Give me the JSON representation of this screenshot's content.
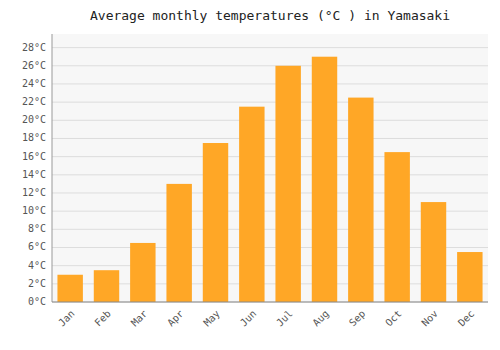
{
  "chart_data": {
    "type": "bar",
    "title": "Average monthly temperatures (°C ) in Yamasaki",
    "categories": [
      "Jan",
      "Feb",
      "Mar",
      "Apr",
      "May",
      "Jun",
      "Jul",
      "Aug",
      "Sep",
      "Oct",
      "Nov",
      "Dec"
    ],
    "values": [
      3.0,
      3.5,
      6.5,
      13.0,
      17.5,
      21.5,
      26.0,
      27.0,
      22.5,
      16.5,
      11.0,
      5.5
    ],
    "color": "#FFA726",
    "ylim": [
      0,
      29.5
    ],
    "yticks": [
      {
        "value": 0,
        "label": "0°C"
      },
      {
        "value": 2,
        "label": "2°C"
      },
      {
        "value": 4,
        "label": "4°C"
      },
      {
        "value": 6,
        "label": "6°C"
      },
      {
        "value": 8,
        "label": "8°C"
      },
      {
        "value": 10,
        "label": "10°C"
      },
      {
        "value": 12,
        "label": "12°C"
      },
      {
        "value": 14,
        "label": "14°C"
      },
      {
        "value": 16,
        "label": "16°C"
      },
      {
        "value": 18,
        "label": "18°C"
      },
      {
        "value": 20,
        "label": "20°C"
      },
      {
        "value": 22,
        "label": "22°C"
      },
      {
        "value": 24,
        "label": "24°C"
      },
      {
        "value": 26,
        "label": "26°C"
      },
      {
        "value": 28,
        "label": "28°C"
      }
    ],
    "grid": true
  }
}
